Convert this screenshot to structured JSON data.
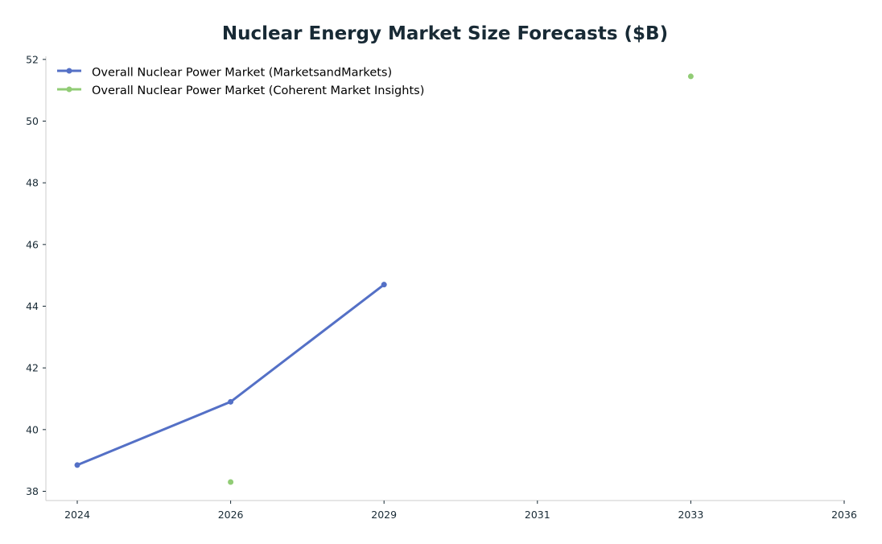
{
  "chart_data": {
    "type": "line",
    "title": "Nuclear Energy Market Size Forecasts ($B)",
    "xlabel": "",
    "ylabel": "",
    "x_ticks": [
      "2024",
      "2026",
      "2029",
      "2031",
      "2033",
      "2036"
    ],
    "y_ticks": [
      38,
      40,
      42,
      44,
      46,
      48,
      50,
      52
    ],
    "ylim": [
      37.7,
      52.1
    ],
    "grid": false,
    "legend_position": "top-left",
    "series": [
      {
        "name": "Overall Nuclear Power Market (MarketsandMarkets)",
        "color": "#5470c6",
        "x": [
          "2024",
          "2026",
          "2029"
        ],
        "values": [
          38.85,
          40.9,
          44.7
        ]
      },
      {
        "name": "Overall Nuclear Power Market (Coherent Market Insights)",
        "color": "#91cc75",
        "x": [
          "2026",
          "2033"
        ],
        "values": [
          38.3,
          51.45
        ]
      }
    ]
  }
}
